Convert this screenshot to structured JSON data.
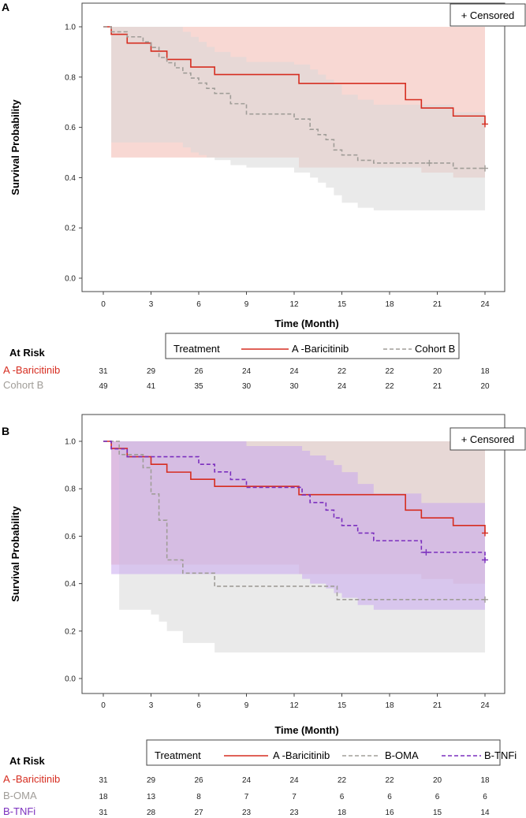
{
  "colors": {
    "baricitinib": "#d62d20",
    "baricitinib_band": "#f2b8ae",
    "cohort_b": "#a09d98",
    "cohort_b_band": "#d9d9d9",
    "oma": "#a09d98",
    "oma_band": "#d9d9d9",
    "tnfi": "#7b2fbe",
    "tnfi_band": "#c8a8ee"
  },
  "chart_data": [
    {
      "type": "line",
      "panel_label": "A",
      "xlabel": "Time (Month)",
      "ylabel": "Survival Probability",
      "xlim": [
        0,
        24
      ],
      "ylim": [
        0,
        1
      ],
      "x_ticks": [
        "0",
        "3",
        "6",
        "9",
        "12",
        "15",
        "18",
        "21",
        "24"
      ],
      "y_ticks": [
        "0.0",
        "0.2",
        "0.4",
        "0.6",
        "0.8",
        "1.0"
      ],
      "censored_label": "+ Censored",
      "legend": {
        "title": "Treatment",
        "items": [
          "A -Baricitinib",
          "Cohort B"
        ]
      },
      "series": [
        {
          "name": "A -Baricitinib",
          "color_key": "baricitinib",
          "dash": false,
          "x": [
            0,
            0.5,
            1.5,
            3,
            4,
            5.5,
            7,
            12.3,
            19,
            20,
            22,
            24
          ],
          "y": [
            1.0,
            0.97,
            0.935,
            0.903,
            0.87,
            0.84,
            0.81,
            0.775,
            0.71,
            0.677,
            0.645,
            0.613
          ],
          "band_lower": [
            1.0,
            0.48,
            0.48,
            0.48,
            0.48,
            0.48,
            0.48,
            0.44,
            0.44,
            0.42,
            0.4,
            0.4
          ],
          "band_upper": [
            1.0,
            1.0,
            1.0,
            1.0,
            1.0,
            1.0,
            1.0,
            1.0,
            1.0,
            1.0,
            1.0,
            0.81
          ],
          "censored": [
            [
              24,
              0.613
            ]
          ]
        },
        {
          "name": "Cohort B",
          "color_key": "cohort_b",
          "dash": true,
          "x": [
            0,
            0.5,
            1.5,
            2.5,
            3,
            3.5,
            4,
            4.5,
            5,
            5.5,
            6,
            6.5,
            7,
            8,
            9,
            12,
            13,
            13.5,
            14,
            14.5,
            15,
            16,
            17,
            20,
            22,
            24
          ],
          "y": [
            1.0,
            0.98,
            0.96,
            0.94,
            0.918,
            0.878,
            0.857,
            0.837,
            0.816,
            0.796,
            0.776,
            0.755,
            0.735,
            0.694,
            0.653,
            0.633,
            0.592,
            0.571,
            0.551,
            0.51,
            0.49,
            0.469,
            0.458,
            0.458,
            0.437,
            0.437
          ],
          "band_lower": [
            1.0,
            0.54,
            0.54,
            0.54,
            0.54,
            0.54,
            0.54,
            0.54,
            0.52,
            0.5,
            0.49,
            0.48,
            0.47,
            0.45,
            0.44,
            0.42,
            0.4,
            0.38,
            0.36,
            0.33,
            0.3,
            0.28,
            0.27,
            0.27,
            0.27,
            0.27
          ],
          "band_upper": [
            1.0,
            1.0,
            1.0,
            1.0,
            1.0,
            1.0,
            1.0,
            1.0,
            0.98,
            0.96,
            0.94,
            0.92,
            0.9,
            0.88,
            0.86,
            0.85,
            0.83,
            0.81,
            0.79,
            0.77,
            0.73,
            0.71,
            0.69,
            0.69,
            0.66,
            0.66
          ],
          "censored": [
            [
              20.5,
              0.458
            ],
            [
              24,
              0.437
            ]
          ]
        }
      ],
      "at_risk": {
        "title": "At Risk",
        "rows": [
          {
            "label": "A -Baricitinib",
            "color_key": "baricitinib",
            "values": [
              "31",
              "29",
              "26",
              "24",
              "24",
              "22",
              "22",
              "20",
              "18"
            ]
          },
          {
            "label": "Cohort B",
            "color_key": "cohort_b",
            "values": [
              "49",
              "41",
              "35",
              "30",
              "30",
              "24",
              "22",
              "21",
              "20"
            ]
          }
        ]
      }
    },
    {
      "type": "line",
      "panel_label": "B",
      "xlabel": "Time (Month)",
      "ylabel": "Survival Probability",
      "xlim": [
        0,
        24
      ],
      "ylim": [
        0,
        1
      ],
      "x_ticks": [
        "0",
        "3",
        "6",
        "9",
        "12",
        "15",
        "18",
        "21",
        "24"
      ],
      "y_ticks": [
        "0.0",
        "0.2",
        "0.4",
        "0.6",
        "0.8",
        "1.0"
      ],
      "censored_label": "+ Censored",
      "legend": {
        "title": "Treatment",
        "items": [
          "A -Baricitinib",
          "B-OMA",
          "B-TNFi"
        ]
      },
      "series": [
        {
          "name": "A -Baricitinib",
          "color_key": "baricitinib",
          "dash": false,
          "x": [
            0,
            0.5,
            1.5,
            3,
            4,
            5.5,
            7,
            12.3,
            19,
            20,
            22,
            24
          ],
          "y": [
            1.0,
            0.97,
            0.935,
            0.903,
            0.87,
            0.84,
            0.81,
            0.775,
            0.71,
            0.677,
            0.645,
            0.613
          ],
          "band_lower": [
            1.0,
            0.48,
            0.48,
            0.48,
            0.48,
            0.48,
            0.48,
            0.44,
            0.44,
            0.42,
            0.4,
            0.4
          ],
          "band_upper": [
            1.0,
            1.0,
            1.0,
            1.0,
            1.0,
            1.0,
            1.0,
            1.0,
            1.0,
            1.0,
            1.0,
            0.81
          ],
          "censored": [
            [
              24,
              0.613
            ]
          ]
        },
        {
          "name": "B-OMA",
          "color_key": "oma",
          "dash": true,
          "x": [
            0,
            1,
            2.5,
            3,
            3.5,
            4,
            5,
            7,
            12.5,
            14.7,
            24
          ],
          "y": [
            1.0,
            0.944,
            0.889,
            0.778,
            0.667,
            0.5,
            0.444,
            0.389,
            0.389,
            0.333,
            0.333
          ],
          "band_lower": [
            1.0,
            0.29,
            0.29,
            0.27,
            0.24,
            0.2,
            0.15,
            0.11,
            0.11,
            0.11,
            0.11
          ],
          "band_upper": [
            1.0,
            1.0,
            1.0,
            1.0,
            1.0,
            1.0,
            1.0,
            1.0,
            1.0,
            1.0,
            1.0
          ],
          "censored": [
            [
              24,
              0.333
            ]
          ]
        },
        {
          "name": "B-TNFi",
          "color_key": "tnfi",
          "dash": true,
          "x": [
            0,
            0.5,
            1.5,
            3,
            4,
            6,
            7,
            8,
            9,
            12.5,
            13,
            14,
            14.5,
            15,
            16,
            17,
            20,
            24
          ],
          "y": [
            1.0,
            0.968,
            0.935,
            0.935,
            0.935,
            0.903,
            0.871,
            0.839,
            0.806,
            0.774,
            0.742,
            0.71,
            0.677,
            0.645,
            0.613,
            0.581,
            0.532,
            0.5
          ],
          "band_lower": [
            1.0,
            0.44,
            0.44,
            0.44,
            0.44,
            0.44,
            0.44,
            0.44,
            0.44,
            0.42,
            0.4,
            0.38,
            0.36,
            0.34,
            0.31,
            0.29,
            0.29,
            0.29
          ],
          "band_upper": [
            1.0,
            1.0,
            1.0,
            1.0,
            1.0,
            1.0,
            1.0,
            1.0,
            0.98,
            0.96,
            0.94,
            0.92,
            0.9,
            0.87,
            0.82,
            0.78,
            0.74,
            0.74
          ],
          "censored": [
            [
              20.3,
              0.532
            ],
            [
              24,
              0.5
            ]
          ]
        }
      ],
      "at_risk": {
        "title": "At Risk",
        "rows": [
          {
            "label": "A -Baricitinib",
            "color_key": "baricitinib",
            "values": [
              "31",
              "29",
              "26",
              "24",
              "24",
              "22",
              "22",
              "20",
              "18"
            ]
          },
          {
            "label": "B-OMA",
            "color_key": "oma",
            "values": [
              "18",
              "13",
              "8",
              "7",
              "7",
              "6",
              "6",
              "6",
              "6"
            ]
          },
          {
            "label": "B-TNFi",
            "color_key": "tnfi",
            "values": [
              "31",
              "28",
              "27",
              "23",
              "23",
              "18",
              "16",
              "15",
              "14"
            ]
          }
        ]
      }
    }
  ]
}
